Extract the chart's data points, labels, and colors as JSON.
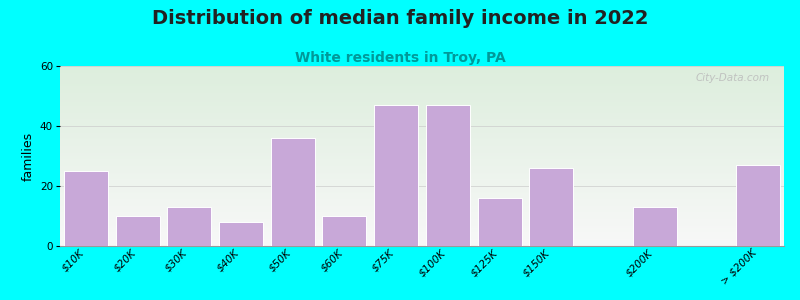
{
  "title": "Distribution of median family income in 2022",
  "subtitle": "White residents in Troy, PA",
  "ylabel": "families",
  "categories": [
    "$10K",
    "$20K",
    "$30K",
    "$40K",
    "$50K",
    "$60K",
    "$75K",
    "$100K",
    "$125K",
    "$150K",
    "$200K",
    "> $200K"
  ],
  "values": [
    25,
    10,
    13,
    8,
    36,
    10,
    47,
    47,
    16,
    26,
    13,
    27
  ],
  "bar_color": "#c8a8d8",
  "bar_edge_color": "#ffffff",
  "background_color": "#00ffff",
  "plot_bg_top_left": "#ddeedd",
  "plot_bg_bottom_right": "#f8f8f8",
  "title_fontsize": 14,
  "subtitle_fontsize": 10,
  "subtitle_color": "#009999",
  "ylabel_fontsize": 9,
  "tick_fontsize": 7.5,
  "ylim": [
    0,
    60
  ],
  "yticks": [
    0,
    20,
    40,
    60
  ],
  "watermark": "City-Data.com",
  "watermark_color": "#bbbbbb",
  "x_positions": [
    0,
    1,
    2,
    3,
    4,
    5,
    6,
    7,
    8,
    9,
    11,
    13
  ],
  "bar_width": 0.85
}
